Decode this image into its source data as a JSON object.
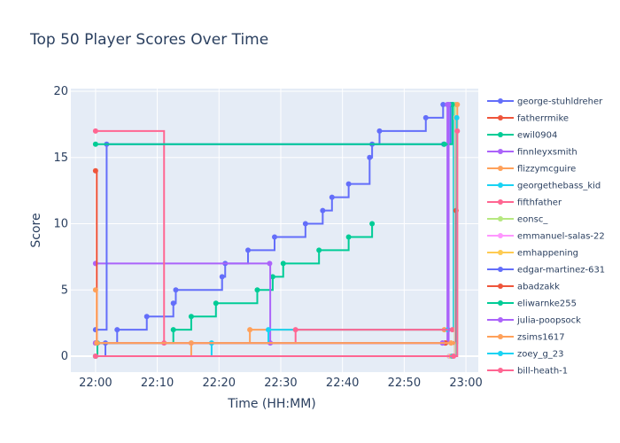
{
  "chart_data": {
    "type": "line",
    "line_shape": "step",
    "title": "Top 50 Player Scores Over Time",
    "xlabel": "Time (HH:MM)",
    "ylabel": "Score",
    "x_ticks": [
      "22:00",
      "22:10",
      "22:20",
      "22:30",
      "22:40",
      "22:50",
      "23:00"
    ],
    "y_ticks": [
      0,
      5,
      10,
      15,
      20
    ],
    "xlim": [
      "21:56",
      "23:02"
    ],
    "ylim": [
      -1.2,
      20.2
    ],
    "grid": true,
    "background": "#e5ecf6",
    "legend_position": "right",
    "series": [
      {
        "name": "george-stuhldreher",
        "color": "#636efa",
        "x": [
          "22:00",
          "22:01.6",
          "22:03.5",
          "22:08.3",
          "22:12.6",
          "22:13",
          "22:20.5",
          "22:21",
          "22:24.7",
          "22:29",
          "22:34",
          "22:36.8",
          "22:38.3",
          "22:41",
          "22:44.4",
          "22:44.8",
          "22:46",
          "22:53.5",
          "22:56.3",
          "22:58.3"
        ],
        "y": [
          0,
          1,
          2,
          3,
          4,
          5,
          6,
          7,
          8,
          9,
          10,
          11,
          12,
          13,
          15,
          16,
          17,
          18,
          19,
          19
        ]
      },
      {
        "name": "fatherrmike",
        "color": "#ef553b",
        "x": [
          "22:00",
          "22:56.6",
          "22:58.3"
        ],
        "y": [
          1,
          1,
          1
        ]
      },
      {
        "name": "ewil0904",
        "color": "#00cc96",
        "x": [
          "22:00",
          "22:00.3",
          "22:12.6",
          "22:15.5",
          "22:19.5",
          "22:26.2",
          "22:28.7",
          "22:30.4",
          "22:36.2",
          "22:41",
          "22:44.8"
        ],
        "y": [
          0,
          1,
          2,
          3,
          4,
          5,
          6,
          7,
          8,
          9,
          10
        ]
      },
      {
        "name": "finnleyxsmith",
        "color": "#ab63fa",
        "x": [
          "22:00",
          "22:28.2",
          "22:28.3",
          "22:56.2",
          "22:57"
        ],
        "y": [
          7,
          7,
          1,
          1,
          19
        ]
      },
      {
        "name": "flizzymcguire",
        "color": "#ffa15a",
        "x": [
          "22:00",
          "22:15.5",
          "22:25",
          "22:56.5",
          "22:58"
        ],
        "y": [
          0,
          1,
          2,
          2,
          19
        ]
      },
      {
        "name": "georgethebass_kid",
        "color": "#19d3f3",
        "x": [
          "22:00",
          "22:18.8",
          "22:28",
          "22:57.1",
          "22:58"
        ],
        "y": [
          0,
          1,
          2,
          2,
          19
        ]
      },
      {
        "name": "fifthfather",
        "color": "#ff6692",
        "x": [
          "22:00",
          "22:11.1",
          "22:32.4",
          "22:57.8",
          "22:58.5"
        ],
        "y": [
          17,
          1,
          2,
          2,
          18
        ]
      },
      {
        "name": "eonsc_",
        "color": "#b6e880",
        "x": [
          "22:00",
          "22:57.3",
          "22:58.2"
        ],
        "y": [
          0,
          0,
          19
        ]
      },
      {
        "name": "emmanuel-salas-22",
        "color": "#ff97ff",
        "x": [
          "22:00",
          "22:57.4",
          "22:58.3"
        ],
        "y": [
          0,
          0,
          18
        ]
      },
      {
        "name": "emhappening",
        "color": "#fecb52",
        "x": [
          "22:00",
          "22:57.6",
          "22:58.4"
        ],
        "y": [
          0,
          0,
          18
        ]
      },
      {
        "name": "edgar-martinez-631",
        "color": "#636efa",
        "x": [
          "22:00",
          "22:01.8",
          "22:56.4",
          "22:57.5"
        ],
        "y": [
          2,
          16,
          16,
          19
        ]
      },
      {
        "name": "abadzakk",
        "color": "#ef553b",
        "x": [
          "22:00",
          "22:00.2",
          "22:56.7",
          "22:58.4"
        ],
        "y": [
          14,
          1,
          1,
          11
        ]
      },
      {
        "name": "eliwarnke255",
        "color": "#00cc96",
        "x": [
          "22:00",
          "22:56.5",
          "22:57.8"
        ],
        "y": [
          16,
          16,
          19
        ]
      },
      {
        "name": "julia-poopsock",
        "color": "#ab63fa",
        "x": [
          "22:00",
          "22:56.2",
          "22:57.2"
        ],
        "y": [
          1,
          1,
          19
        ]
      },
      {
        "name": "zsims1617",
        "color": "#ffa15a",
        "x": [
          "22:00",
          "22:00.2",
          "22:57.6",
          "22:58.6"
        ],
        "y": [
          5,
          1,
          1,
          19
        ]
      },
      {
        "name": "zoey_g_23",
        "color": "#19d3f3",
        "x": [
          "22:00",
          "22:57.8",
          "22:58.5"
        ],
        "y": [
          0,
          0,
          18
        ]
      },
      {
        "name": "bill-heath-1",
        "color": "#ff6692",
        "x": [
          "22:00",
          "22:58",
          "22:58.6"
        ],
        "y": [
          0,
          0,
          17
        ]
      }
    ]
  }
}
